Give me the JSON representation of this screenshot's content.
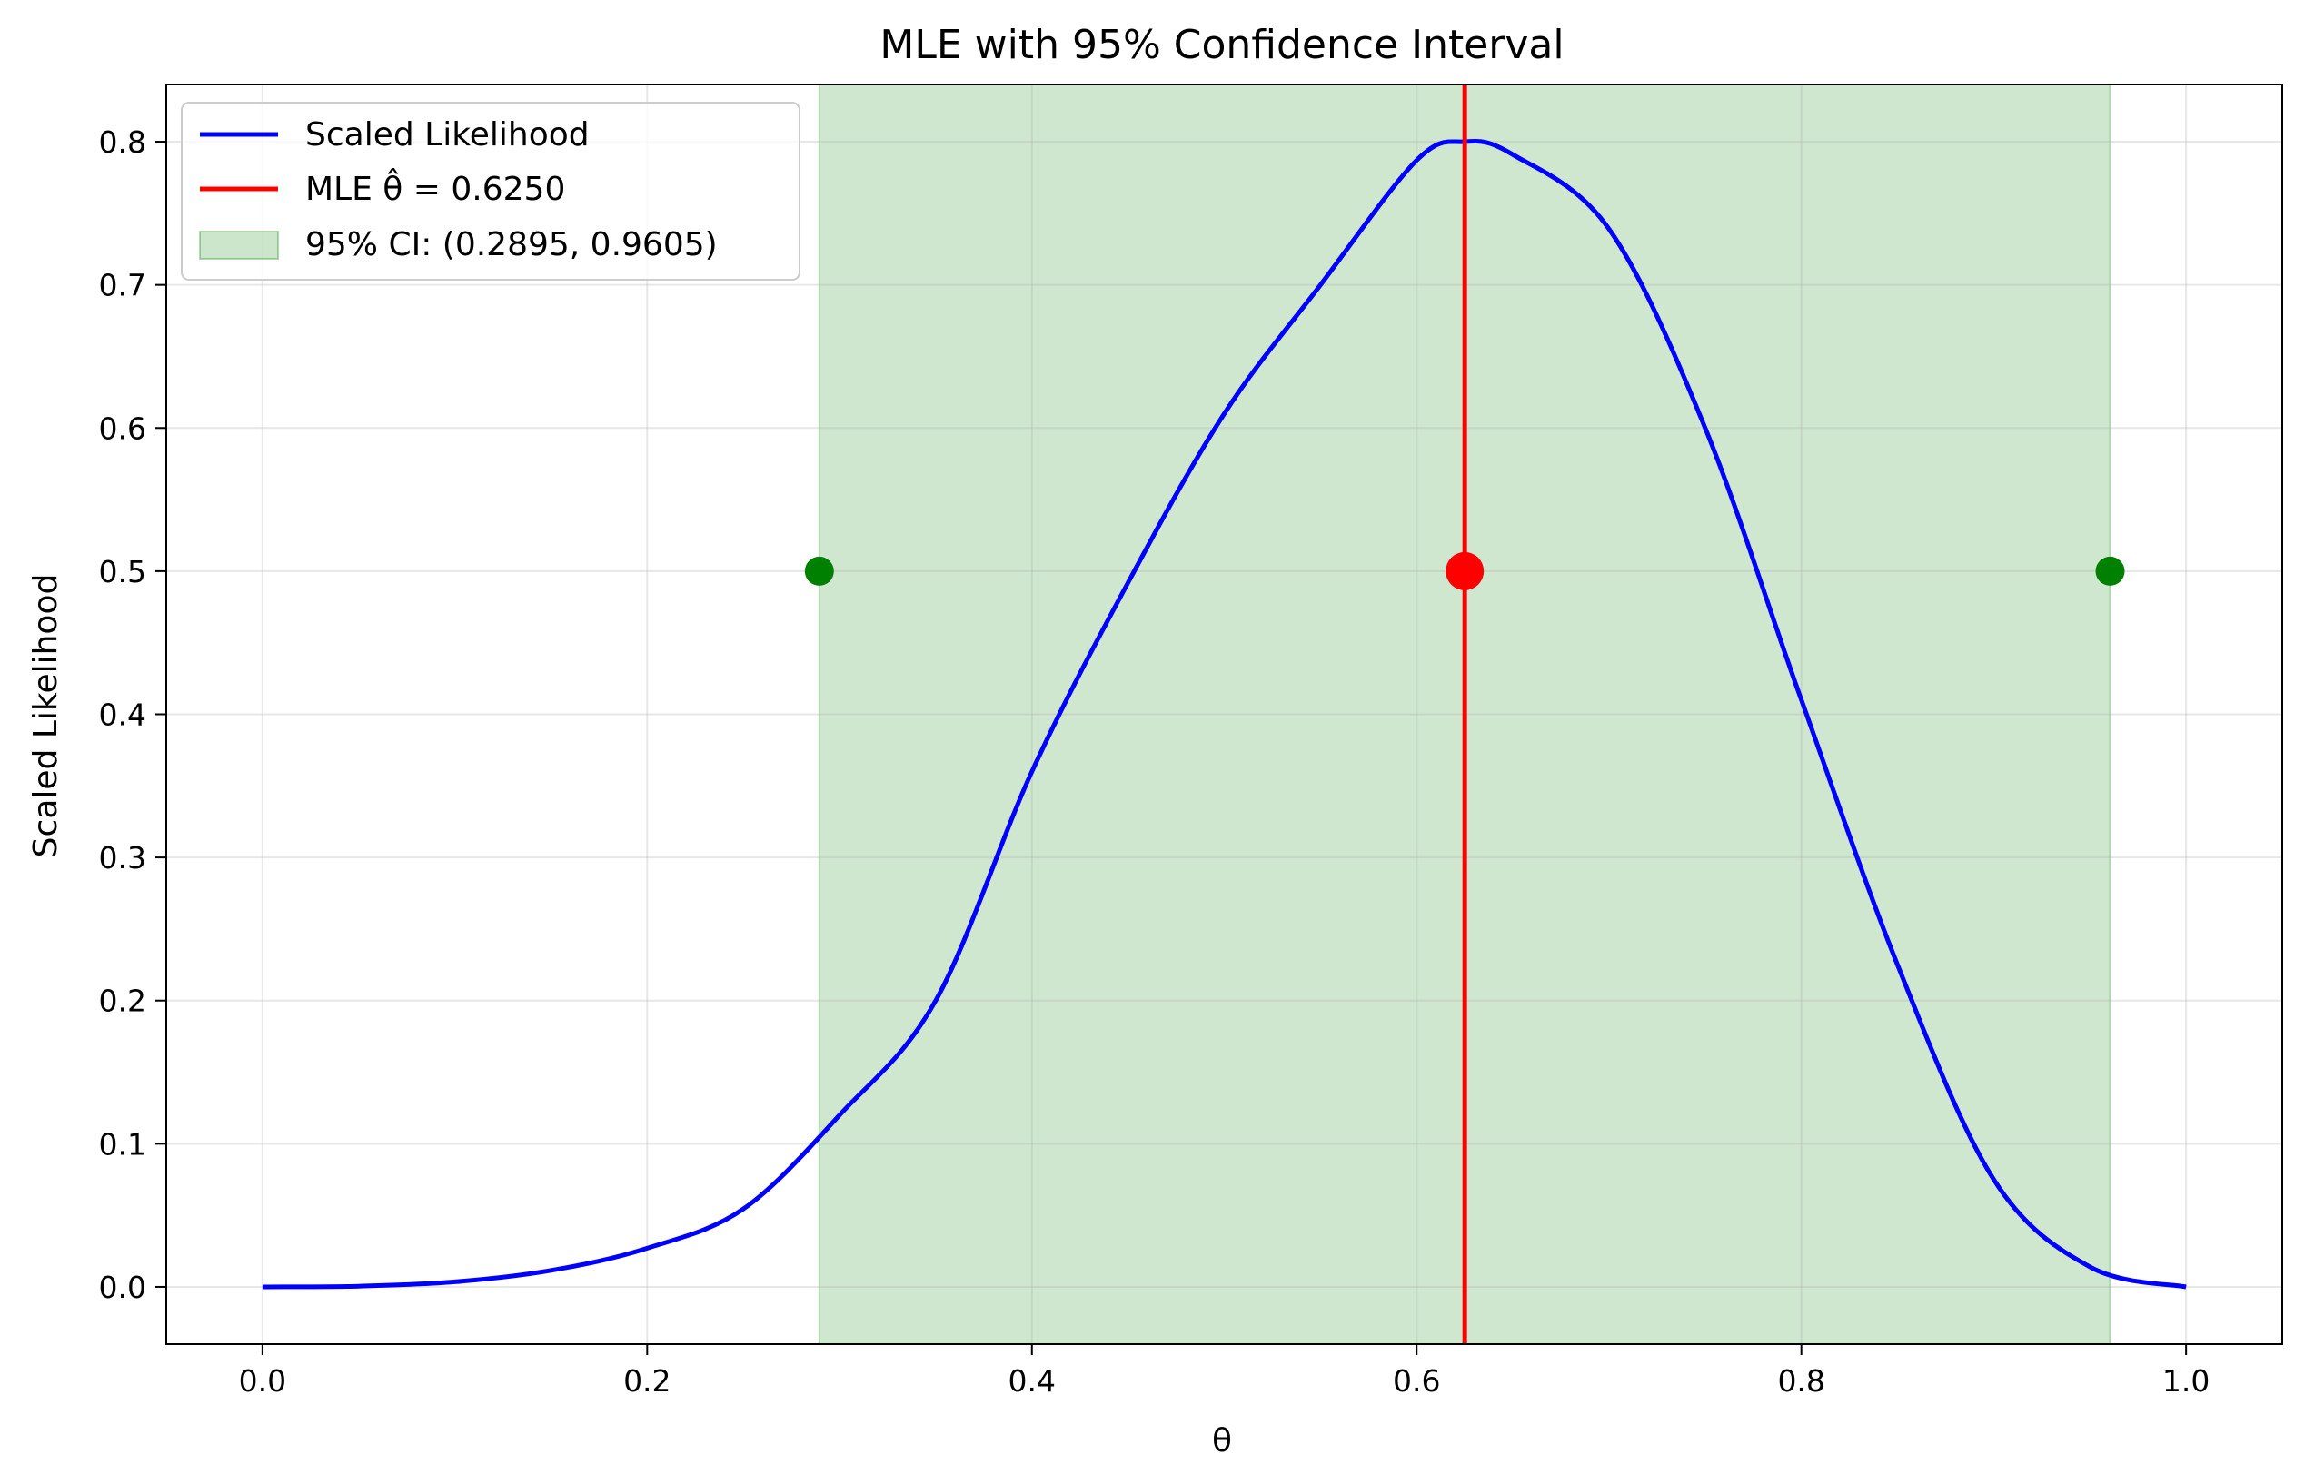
{
  "chart_data": {
    "type": "line",
    "title": "MLE with 95% Confidence Interval",
    "xlabel": "θ",
    "ylabel": "Scaled Likelihood",
    "xlim": [
      -0.05,
      1.05
    ],
    "ylim": [
      -0.04,
      0.84
    ],
    "grid": true,
    "legend_position": "top-left",
    "x_ticks": [
      0.0,
      0.2,
      0.4,
      0.6,
      0.8,
      1.0
    ],
    "x_tick_labels": [
      "0.0",
      "0.2",
      "0.4",
      "0.6",
      "0.8",
      "1.0"
    ],
    "y_ticks": [
      0.0,
      0.1,
      0.2,
      0.3,
      0.4,
      0.5,
      0.6,
      0.7,
      0.8
    ],
    "y_tick_labels": [
      "0.0",
      "0.1",
      "0.2",
      "0.3",
      "0.4",
      "0.5",
      "0.6",
      "0.7",
      "0.8"
    ],
    "series": [
      {
        "name": "Scaled Likelihood",
        "kind": "line",
        "color": "#0000ff",
        "x": [
          0.0,
          0.05,
          0.1,
          0.15,
          0.2,
          0.25,
          0.3,
          0.35,
          0.4,
          0.45,
          0.5,
          0.55,
          0.6,
          0.625,
          0.65,
          0.7,
          0.75,
          0.8,
          0.85,
          0.9,
          0.95,
          1.0
        ],
        "y": [
          0.0,
          0.0005,
          0.0035,
          0.0115,
          0.027,
          0.0545,
          0.12,
          0.2,
          0.36,
          0.492,
          0.61,
          0.7,
          0.787,
          0.8,
          0.791,
          0.739,
          0.6,
          0.41,
          0.225,
          0.075,
          0.014,
          0.0
        ]
      },
      {
        "name": "MLE θ̂ = 0.6250",
        "kind": "vline",
        "color": "#ff0000",
        "x": 0.625
      },
      {
        "name": "95% CI: (0.2895, 0.9605)",
        "kind": "span",
        "color": "#008000",
        "x_range": [
          0.2895,
          0.9605
        ]
      }
    ],
    "markers": [
      {
        "x": 0.2895,
        "y": 0.5,
        "color": "#008000",
        "size": "medium"
      },
      {
        "x": 0.625,
        "y": 0.5,
        "color": "#ff0000",
        "size": "large"
      },
      {
        "x": 0.9605,
        "y": 0.5,
        "color": "#008000",
        "size": "medium"
      }
    ]
  }
}
